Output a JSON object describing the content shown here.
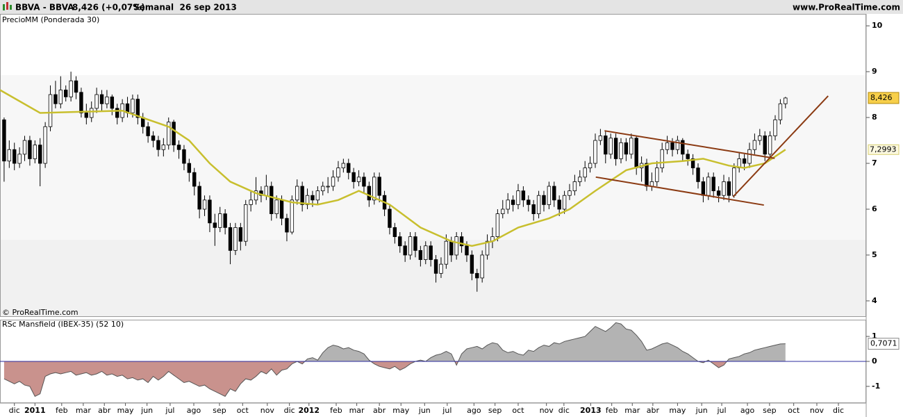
{
  "chart_data": [
    {
      "type": "candlestick",
      "title": "BBVA - BBVA",
      "subtitle": "8,426 (+0,07%)",
      "period": "Semanal  26 sep 2013",
      "source": "www.ProRealTime.com",
      "credit": "© ProRealTime.com",
      "price_name": "Precio",
      "up_color": "#ffffff",
      "down_color": "#000000",
      "open": [
        7.95,
        7.05,
        7.3,
        7.0,
        7.2,
        7.5,
        7.1,
        7.4,
        7.0,
        7.8,
        8.5,
        8.3,
        8.6,
        8.45,
        8.8,
        8.55,
        8.1,
        8.0,
        8.2,
        8.5,
        8.3,
        8.45,
        8.2,
        8.0,
        8.3,
        8.1,
        8.4,
        8.0,
        7.8,
        7.6,
        7.5,
        7.3,
        7.4,
        7.9,
        7.4,
        7.3,
        7.0,
        6.8,
        6.5,
        6.0,
        6.2,
        5.7,
        5.6,
        5.9,
        5.6,
        5.1,
        5.6,
        5.3,
        6.1,
        6.2,
        6.4,
        6.3,
        6.5,
        5.9,
        6.2,
        5.8,
        5.5,
        6.2,
        6.5,
        6.1,
        6.3,
        6.2,
        6.4,
        6.5,
        6.5,
        6.7,
        6.9,
        7.0,
        6.8,
        6.6,
        6.7,
        6.5,
        6.2,
        6.7,
        6.3,
        6.0,
        5.6,
        5.4,
        5.2,
        5.0,
        5.4,
        5.1,
        4.9,
        5.2,
        4.9,
        4.6,
        4.8,
        5.3,
        5.0,
        5.4,
        5.2,
        5.0,
        4.6,
        4.5,
        5.0,
        5.3,
        5.4,
        5.9,
        6.0,
        6.2,
        6.1,
        6.4,
        6.2,
        6.1,
        5.9,
        6.3,
        6.1,
        6.5,
        6.2,
        6.0,
        6.3,
        6.4,
        6.6,
        6.7,
        6.9,
        7.0,
        7.5,
        7.6,
        7.2,
        7.55,
        7.1,
        7.45,
        7.2,
        7.55,
        6.9,
        7.0,
        6.5,
        6.6,
        6.9,
        7.3,
        7.45,
        7.3,
        7.5,
        7.2,
        7.1,
        6.9,
        6.6,
        6.3,
        6.7,
        6.4,
        6.3,
        6.6,
        6.3,
        6.9,
        7.1,
        7.0,
        7.3,
        7.5,
        7.6,
        7.2,
        7.6,
        7.95,
        8.3
      ],
      "high": [
        8.0,
        7.5,
        7.45,
        7.35,
        7.6,
        7.6,
        7.5,
        7.55,
        7.9,
        8.7,
        8.8,
        8.9,
        8.7,
        9.0,
        8.9,
        8.65,
        8.3,
        8.35,
        8.65,
        8.6,
        8.6,
        8.5,
        8.3,
        8.4,
        8.45,
        8.5,
        8.5,
        8.1,
        7.9,
        7.7,
        7.6,
        7.55,
        8.0,
        7.95,
        7.5,
        7.4,
        7.1,
        6.9,
        6.6,
        6.3,
        6.3,
        5.9,
        6.05,
        6.0,
        5.7,
        5.7,
        5.7,
        6.2,
        6.4,
        6.7,
        6.5,
        6.75,
        6.6,
        6.3,
        6.3,
        5.9,
        6.3,
        6.65,
        6.6,
        6.45,
        6.4,
        6.5,
        6.6,
        6.7,
        6.85,
        7.05,
        7.1,
        7.1,
        6.9,
        6.85,
        6.8,
        6.6,
        6.8,
        6.8,
        6.4,
        6.1,
        5.7,
        5.5,
        5.3,
        5.5,
        5.5,
        5.2,
        5.3,
        5.3,
        5.0,
        4.95,
        5.45,
        5.4,
        5.5,
        5.5,
        5.3,
        5.1,
        4.7,
        5.1,
        5.45,
        5.6,
        6.0,
        6.2,
        6.35,
        6.3,
        6.55,
        6.5,
        6.3,
        6.2,
        6.4,
        6.4,
        6.6,
        6.6,
        6.3,
        6.4,
        6.55,
        6.75,
        6.85,
        7.05,
        7.15,
        7.65,
        7.75,
        7.7,
        7.65,
        7.65,
        7.55,
        7.55,
        7.65,
        7.6,
        7.15,
        7.1,
        6.8,
        7.05,
        7.45,
        7.6,
        7.55,
        7.6,
        7.55,
        7.3,
        7.2,
        7.0,
        6.7,
        6.8,
        6.8,
        6.5,
        6.75,
        6.7,
        7.0,
        7.25,
        7.2,
        7.45,
        7.65,
        7.75,
        7.7,
        7.7,
        8.05,
        8.4,
        8.45
      ],
      "low": [
        6.6,
        6.9,
        6.85,
        6.9,
        7.05,
        6.95,
        7.0,
        6.5,
        6.9,
        7.7,
        8.2,
        8.2,
        8.35,
        8.35,
        8.4,
        8.0,
        7.85,
        7.9,
        8.1,
        8.15,
        8.2,
        8.05,
        7.85,
        7.9,
        8.0,
        8.0,
        7.85,
        7.65,
        7.45,
        7.35,
        7.15,
        7.15,
        7.3,
        7.25,
        7.1,
        6.85,
        6.6,
        6.3,
        5.8,
        5.85,
        5.5,
        5.2,
        5.5,
        5.45,
        4.8,
        5.0,
        5.1,
        5.2,
        5.95,
        6.1,
        6.15,
        6.2,
        5.75,
        5.8,
        5.65,
        5.3,
        5.45,
        6.1,
        5.95,
        6.0,
        6.05,
        6.1,
        6.3,
        6.35,
        6.4,
        6.6,
        6.8,
        6.65,
        6.45,
        6.5,
        6.35,
        6.05,
        6.1,
        6.15,
        5.85,
        5.45,
        5.25,
        5.05,
        4.85,
        4.9,
        4.95,
        4.75,
        4.8,
        4.75,
        4.4,
        4.5,
        4.7,
        4.85,
        4.9,
        5.05,
        4.85,
        4.45,
        4.2,
        4.4,
        4.9,
        5.15,
        5.3,
        5.8,
        5.9,
        5.95,
        6.0,
        6.05,
        5.95,
        5.75,
        5.8,
        5.95,
        6.0,
        6.05,
        5.85,
        5.9,
        6.2,
        6.3,
        6.5,
        6.6,
        6.8,
        6.9,
        7.4,
        7.0,
        7.1,
        6.95,
        7.0,
        7.05,
        7.1,
        6.75,
        6.6,
        6.4,
        6.4,
        6.5,
        6.8,
        7.2,
        7.15,
        7.2,
        7.05,
        6.95,
        6.75,
        6.45,
        6.15,
        6.2,
        6.25,
        6.15,
        6.2,
        6.15,
        6.25,
        6.8,
        6.85,
        6.9,
        7.2,
        7.4,
        7.05,
        7.1,
        7.5,
        7.85,
        8.2
      ],
      "close": [
        7.05,
        7.3,
        7.0,
        7.2,
        7.5,
        7.1,
        7.4,
        7.0,
        7.8,
        8.5,
        8.3,
        8.6,
        8.45,
        8.8,
        8.55,
        8.1,
        8.0,
        8.2,
        8.5,
        8.3,
        8.45,
        8.2,
        8.0,
        8.3,
        8.1,
        8.4,
        8.0,
        7.8,
        7.6,
        7.5,
        7.3,
        7.4,
        7.9,
        7.4,
        7.3,
        7.0,
        6.8,
        6.5,
        6.0,
        6.2,
        5.7,
        5.6,
        5.9,
        5.6,
        5.1,
        5.6,
        5.3,
        6.1,
        6.2,
        6.4,
        6.3,
        6.5,
        5.9,
        6.2,
        5.8,
        5.5,
        6.2,
        6.5,
        6.1,
        6.3,
        6.2,
        6.4,
        6.5,
        6.5,
        6.7,
        6.9,
        7.0,
        6.8,
        6.6,
        6.7,
        6.5,
        6.2,
        6.7,
        6.3,
        6.0,
        5.6,
        5.4,
        5.2,
        5.0,
        5.4,
        5.1,
        4.9,
        5.2,
        4.9,
        4.6,
        4.8,
        5.3,
        5.0,
        5.4,
        5.2,
        5.0,
        4.6,
        4.5,
        5.0,
        5.3,
        5.4,
        5.9,
        6.0,
        6.2,
        6.1,
        6.4,
        6.2,
        6.1,
        5.9,
        6.3,
        6.1,
        6.5,
        6.2,
        6.0,
        6.3,
        6.4,
        6.6,
        6.7,
        6.9,
        7.0,
        7.5,
        7.6,
        7.2,
        7.55,
        7.1,
        7.45,
        7.2,
        7.55,
        6.9,
        7.0,
        6.5,
        6.6,
        6.9,
        7.3,
        7.45,
        7.3,
        7.5,
        7.2,
        7.1,
        6.9,
        6.6,
        6.3,
        6.7,
        6.4,
        6.3,
        6.6,
        6.3,
        6.9,
        7.1,
        7.0,
        7.3,
        7.5,
        7.6,
        7.2,
        7.6,
        7.95,
        8.3,
        8.426
      ],
      "last_close_label": "8,426",
      "series": [
        {
          "name": "MM (Ponderada 30)",
          "color": "#c8bf2e",
          "x": [
            -0.8,
            7,
            23,
            32,
            36,
            40,
            44,
            49,
            56,
            61,
            65,
            69,
            75,
            81,
            87,
            91,
            95,
            100,
            106,
            110,
            115,
            121,
            126,
            132,
            136,
            141,
            144,
            148,
            152
          ],
          "values": [
            8.6,
            8.1,
            8.15,
            7.8,
            7.5,
            7.0,
            6.6,
            6.35,
            6.15,
            6.1,
            6.2,
            6.4,
            6.1,
            5.6,
            5.3,
            5.2,
            5.3,
            5.6,
            5.8,
            6.0,
            6.4,
            6.85,
            7.0,
            7.05,
            7.1,
            6.95,
            6.9,
            7.0,
            7.2993
          ],
          "last_label": "7,2993"
        }
      ],
      "trendlines": [
        {
          "color": "#8b3a12",
          "x": [
            116.8,
            149.9
          ],
          "y": [
            7.71,
            7.11
          ]
        },
        {
          "color": "#8b3a12",
          "x": [
            115.1,
            147.8
          ],
          "y": [
            6.7,
            6.09
          ]
        },
        {
          "color": "#8b3a12",
          "x": [
            141.8,
            160.3
          ],
          "y": [
            6.27,
            8.47
          ]
        }
      ],
      "xlim": [
        -0.8,
        167.7
      ],
      "xticks": [
        {
          "value": 2,
          "label": "dic"
        },
        {
          "value": 6,
          "label": "2011"
        },
        {
          "value": 11.2,
          "label": "feb"
        },
        {
          "value": 15.4,
          "label": "mar"
        },
        {
          "value": 19.5,
          "label": "abr"
        },
        {
          "value": 23.6,
          "label": "may"
        },
        {
          "value": 27.8,
          "label": "jun"
        },
        {
          "value": 32.3,
          "label": "jul"
        },
        {
          "value": 36.9,
          "label": "ago"
        },
        {
          "value": 41.9,
          "label": "sep"
        },
        {
          "value": 46.4,
          "label": "oct"
        },
        {
          "value": 51.2,
          "label": "nov"
        },
        {
          "value": 55.5,
          "label": "dic"
        },
        {
          "value": 59.3,
          "label": "2012"
        },
        {
          "value": 64.6,
          "label": "feb"
        },
        {
          "value": 68.6,
          "label": "mar"
        },
        {
          "value": 73,
          "label": "abr"
        },
        {
          "value": 77.2,
          "label": "may"
        },
        {
          "value": 81.8,
          "label": "jun"
        },
        {
          "value": 86.2,
          "label": "jul"
        },
        {
          "value": 91.4,
          "label": "ago"
        },
        {
          "value": 95.5,
          "label": "sep"
        },
        {
          "value": 100,
          "label": "oct"
        },
        {
          "value": 105.5,
          "label": "nov"
        },
        {
          "value": 108.9,
          "label": "dic"
        },
        {
          "value": 114.1,
          "label": "2013"
        },
        {
          "value": 118.2,
          "label": "feb"
        },
        {
          "value": 122.2,
          "label": "mar"
        },
        {
          "value": 126.2,
          "label": "abr"
        },
        {
          "value": 131,
          "label": "may"
        },
        {
          "value": 135.7,
          "label": "jun"
        },
        {
          "value": 139.6,
          "label": "jul"
        },
        {
          "value": 144.6,
          "label": "ago"
        },
        {
          "value": 148.9,
          "label": "sep"
        },
        {
          "value": 153.6,
          "label": "oct"
        },
        {
          "value": 158.1,
          "label": "nov"
        },
        {
          "value": 162.3,
          "label": "dic"
        }
      ],
      "ylim": [
        3.65,
        10.26
      ],
      "yticks": [
        4,
        5,
        6,
        7,
        8,
        9,
        10
      ]
    },
    {
      "type": "area",
      "title": "RSc Mansfield (IBEX-35) (52 10)",
      "values": [
        -0.7,
        -0.8,
        -0.9,
        -0.8,
        -0.95,
        -1.0,
        -1.4,
        -1.3,
        -0.6,
        -0.5,
        -0.45,
        -0.5,
        -0.45,
        -0.4,
        -0.55,
        -0.5,
        -0.45,
        -0.55,
        -0.5,
        -0.4,
        -0.55,
        -0.5,
        -0.6,
        -0.55,
        -0.7,
        -0.65,
        -0.75,
        -0.7,
        -0.85,
        -0.6,
        -0.75,
        -0.6,
        -0.4,
        -0.55,
        -0.7,
        -0.85,
        -0.8,
        -0.9,
        -1.0,
        -0.95,
        -1.1,
        -1.2,
        -1.3,
        -1.4,
        -1.1,
        -1.2,
        -0.9,
        -0.7,
        -0.75,
        -0.6,
        -0.4,
        -0.5,
        -0.3,
        -0.55,
        -0.35,
        -0.3,
        -0.1,
        0.0,
        -0.1,
        0.1,
        0.15,
        0.05,
        0.35,
        0.55,
        0.65,
        0.6,
        0.5,
        0.55,
        0.45,
        0.4,
        0.3,
        0.05,
        -0.1,
        -0.2,
        -0.25,
        -0.3,
        -0.2,
        -0.35,
        -0.25,
        -0.1,
        0.0,
        0.05,
        0.0,
        0.15,
        0.25,
        0.3,
        0.4,
        0.3,
        -0.15,
        0.3,
        0.5,
        0.55,
        0.6,
        0.5,
        0.65,
        0.75,
        0.7,
        0.45,
        0.35,
        0.4,
        0.3,
        0.25,
        0.45,
        0.4,
        0.55,
        0.65,
        0.6,
        0.75,
        0.7,
        0.8,
        0.85,
        0.9,
        0.95,
        1.0,
        1.2,
        1.4,
        1.3,
        1.2,
        1.35,
        1.55,
        1.5,
        1.3,
        1.25,
        1.05,
        0.8,
        0.45,
        0.5,
        0.6,
        0.7,
        0.75,
        0.65,
        0.55,
        0.4,
        0.3,
        0.15,
        0.0,
        -0.05,
        0.05,
        -0.1,
        -0.25,
        -0.15,
        0.1,
        0.15,
        0.2,
        0.3,
        0.35,
        0.45,
        0.5,
        0.55,
        0.6,
        0.65,
        0.7,
        0.7071
      ],
      "last_label": "0,7071",
      "pos_color": "#b3b3b3",
      "neg_color": "#c9928d",
      "baseline_color": "#2b2b9c",
      "ylim": [
        -1.67,
        1.67
      ],
      "yticks": [
        1,
        0,
        -1
      ]
    }
  ]
}
